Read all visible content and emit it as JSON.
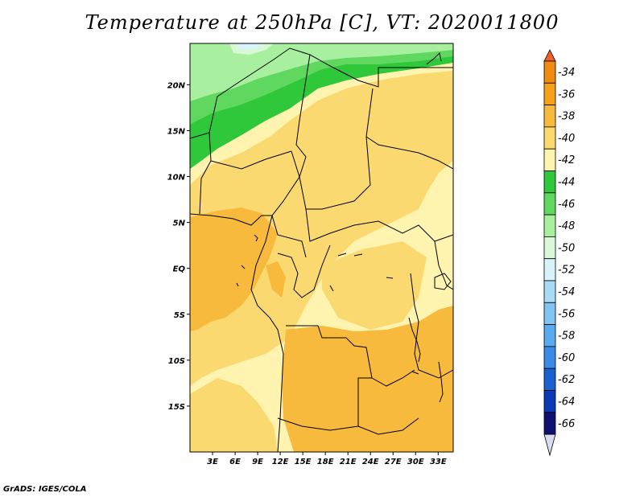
{
  "title": "Temperature at 250hPa [C], VT: 2020011800",
  "footer": "GrADS: IGES/COLA",
  "map": {
    "lat_labels": [
      "20N",
      "15N",
      "10N",
      "5N",
      "EQ",
      "5S",
      "10S",
      "15S"
    ],
    "lat_values": [
      20,
      15,
      10,
      5,
      0,
      -5,
      -10,
      -15
    ],
    "lon_labels": [
      "3E",
      "6E",
      "9E",
      "12E",
      "15E",
      "18E",
      "21E",
      "24E",
      "27E",
      "30E",
      "33E"
    ],
    "lon_values": [
      3,
      6,
      9,
      12,
      15,
      18,
      21,
      24,
      27,
      30,
      33
    ],
    "lat_range": [
      -20,
      24.5
    ],
    "lon_range": [
      0,
      35
    ]
  },
  "colorbar": {
    "labels": [
      "-34",
      "-36",
      "-38",
      "-40",
      "-42",
      "-44",
      "-46",
      "-48",
      "-50",
      "-52",
      "-54",
      "-56",
      "-58",
      "-60",
      "-62",
      "-64",
      "-66"
    ],
    "colors": [
      "#f0602a",
      "#f08a10",
      "#f5a21a",
      "#f8ba3c",
      "#fad970",
      "#fff3b0",
      "#2ec83a",
      "#60d860",
      "#a8f0a0",
      "#d8f8d8",
      "#d8f4fa",
      "#a8dcf4",
      "#82c4f0",
      "#5aaaf0",
      "#3a8ae6",
      "#1c60d0",
      "#0b3ab4",
      "#101070",
      "#dcdcf0"
    ]
  }
}
